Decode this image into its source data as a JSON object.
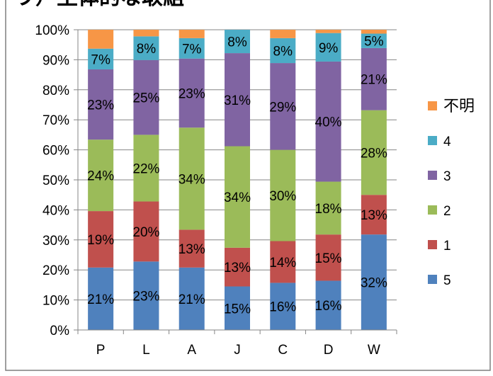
{
  "chart_data": {
    "type": "bar",
    "stacked": true,
    "percent_stacked": true,
    "title": "ウ）主体的な取組",
    "categories": [
      "P",
      "L",
      "A",
      "J",
      "C",
      "D",
      "W"
    ],
    "ylim": [
      0,
      100
    ],
    "y_ticks": [
      "0%",
      "10%",
      "20%",
      "30%",
      "40%",
      "50%",
      "60%",
      "70%",
      "80%",
      "90%",
      "100%"
    ],
    "legend_position": "right",
    "grid": true,
    "series": [
      {
        "name": "5",
        "color": "#4f81bd",
        "values": [
          20.8,
          22.8,
          20.8,
          14.5,
          15.7,
          16.4,
          31.8
        ],
        "labels": [
          "21%",
          "23%",
          "21%",
          "15%",
          "16%",
          "16%",
          "32%"
        ]
      },
      {
        "name": "1",
        "color": "#c0504d",
        "values": [
          18.8,
          20.0,
          12.6,
          12.9,
          13.9,
          15.4,
          13.2
        ],
        "labels": [
          "19%",
          "20%",
          "13%",
          "13%",
          "14%",
          "15%",
          "13%"
        ]
      },
      {
        "name": "2",
        "color": "#9bbb59",
        "values": [
          23.8,
          22.2,
          34.0,
          33.8,
          30.4,
          17.6,
          28.2
        ],
        "labels": [
          "24%",
          "22%",
          "34%",
          "34%",
          "30%",
          "18%",
          "28%"
        ]
      },
      {
        "name": "3",
        "color": "#8064a2",
        "values": [
          23.4,
          24.9,
          23.0,
          31.0,
          28.9,
          40.0,
          20.7
        ],
        "labels": [
          "23%",
          "25%",
          "23%",
          "31%",
          "29%",
          "40%",
          "21%"
        ]
      },
      {
        "name": "4",
        "color": "#4bacc6",
        "values": [
          6.9,
          7.9,
          6.8,
          7.8,
          8.3,
          9.5,
          4.8
        ],
        "labels": [
          "7%",
          "8%",
          "7%",
          "8%",
          "8%",
          "9%",
          "5%"
        ]
      },
      {
        "name": "不明",
        "color": "#f79646",
        "values": [
          6.3,
          2.2,
          2.8,
          0,
          2.8,
          1.1,
          1.3
        ],
        "labels": [
          "",
          "",
          "",
          "",
          "",
          "",
          ""
        ]
      }
    ],
    "legend_order": [
      "不明",
      "4",
      "3",
      "2",
      "1",
      "5"
    ]
  }
}
